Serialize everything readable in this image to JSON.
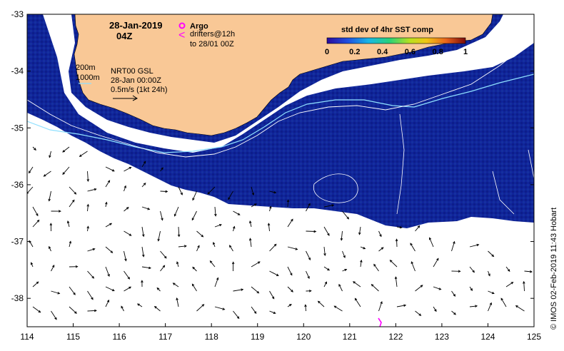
{
  "map": {
    "date": "28-Jan-2019",
    "time": "04Z",
    "legend_title": "std dev of 4hr SST comp",
    "colorbar": {
      "ticks": [
        "0",
        "0.2",
        "0.4",
        "0.6",
        "0.8",
        "1"
      ],
      "colors": [
        "#2a0b9c",
        "#1f4fe0",
        "#19b7e6",
        "#28d27a",
        "#b9e01f",
        "#f2c514",
        "#e8641c",
        "#7a0a0a"
      ]
    },
    "argo_label": "Argo",
    "drifters_label": "drifters@12h",
    "drifters_to": "to 28/01 00Z",
    "isobath_200": "200m",
    "isobath_1000": "1000m",
    "gsl_line1": "NRT00 GSL",
    "gsl_line2": "28-Jan 00:00Z",
    "gsl_line3": "0.5m/s (1kt 24h)",
    "credit": "© IMOS 02-Feb-2019 11:43 Hobart",
    "x_ticks": [
      "114",
      "115",
      "116",
      "117",
      "118",
      "119",
      "120",
      "121",
      "122",
      "123",
      "124",
      "125"
    ],
    "y_ticks": [
      "-33",
      "-34",
      "-35",
      "-36",
      "-37",
      "-38"
    ],
    "xlim": [
      114,
      125
    ],
    "ylim": [
      -38.5,
      -33
    ],
    "colors": {
      "land": "#f9c896",
      "ocean_sst": "#10249a",
      "ocean_sst_light": "#1a3db8",
      "cloud": "#ffffff",
      "isobath_200": "#8fe0ff",
      "isobath_1000": "#ffffff",
      "argo": "#ff00ff"
    }
  }
}
